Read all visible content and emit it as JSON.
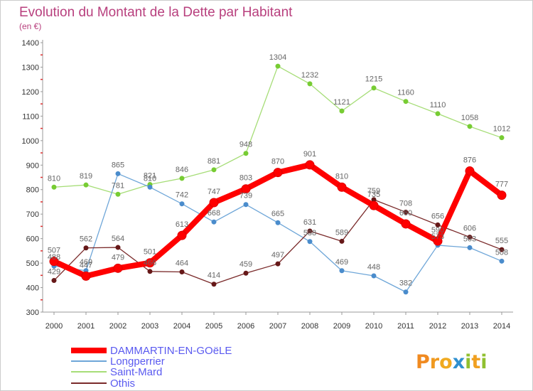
{
  "chart_data": {
    "type": "line",
    "title": "Evolution du Montant de la Dette par Habitant",
    "subtitle": "(en €)",
    "xlabel": "",
    "ylabel": "",
    "categories": [
      "2000",
      "2001",
      "2002",
      "2003",
      "2004",
      "2005",
      "2006",
      "2007",
      "2008",
      "2009",
      "2010",
      "2011",
      "2012",
      "2013",
      "2014"
    ],
    "ylim": [
      300,
      1400
    ],
    "yticks": [
      1400,
      1300,
      1200,
      1100,
      1000,
      900,
      800,
      700,
      600,
      500,
      400,
      300
    ],
    "grid": false,
    "legend": "bottom-left",
    "series": [
      {
        "name": "DAMMARTIN-EN-GOëLE",
        "color": "#ff0000",
        "marker_color": "#dd0000",
        "values": [
          507,
          447,
          479,
          501,
          613,
          747,
          803,
          870,
          901,
          810,
          735,
          660,
          590,
          876,
          777
        ]
      },
      {
        "name": "Longperrier",
        "color": "#6ea6d8",
        "marker_color": "#4a8ccc",
        "values": [
          488,
          469,
          865,
          810,
          742,
          668,
          739,
          665,
          588,
          469,
          448,
          382,
          573,
          563,
          508
        ]
      },
      {
        "name": "Saint-Mard",
        "color": "#a6dd77",
        "marker_color": "#77cc33",
        "values": [
          810,
          819,
          781,
          821,
          846,
          881,
          948,
          1304,
          1232,
          1121,
          1215,
          1160,
          1110,
          1058,
          1012
        ]
      },
      {
        "name": "Othis",
        "color": "#7a2a2a",
        "marker_color": "#661818",
        "values": [
          429,
          562,
          564,
          466,
          464,
          414,
          459,
          497,
          631,
          589,
          759,
          708,
          656,
          606,
          555
        ]
      }
    ]
  },
  "logo": {
    "text": "Proxiti",
    "colors": [
      "#f08a20",
      "#f09a20",
      "#f0aa20",
      "#3090d0",
      "#90c030",
      "#f0a020",
      "#90c030"
    ]
  }
}
